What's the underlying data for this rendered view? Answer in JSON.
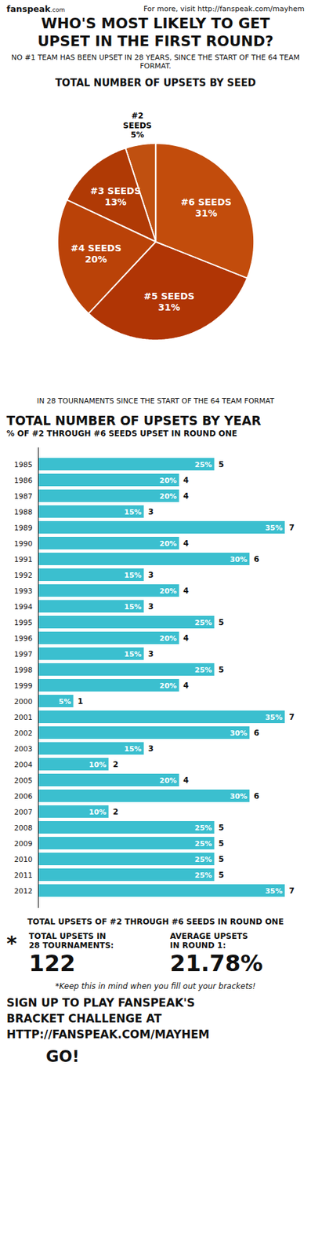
{
  "chart_data": [
    {
      "type": "pie",
      "title": "TOTAL NUMBER OF UPSETS BY SEED",
      "subtitle": "IN 28 TOURNAMENTS SINCE THE START OF THE 64 TEAM FORMAT",
      "annotations": [
        "fanspeak",
        ".com",
        "For more, visit http://fanspeak.com/mayhem",
        "WHO'S MOST LIKELY TO GET",
        "UPSET IN THE FIRST ROUND?",
        "NO #1 TEAM HAS BEEN UPSET IN 28 YEARS, SINCE THE START OF THE 64 TEAM FORMAT."
      ],
      "categories": [
        "#2\nSEEDS",
        "#3 SEEDS",
        "#4 SEEDS",
        "#5 SEEDS",
        "#6 SEEDS"
      ],
      "values": [
        5,
        13,
        20,
        31,
        31
      ],
      "value_labels": [
        "5%",
        "13%",
        "20%",
        "31%",
        "31%"
      ],
      "colors": [
        "#c05010",
        "#b03a05",
        "#ba4208",
        "#b03505",
        "#c24c0c"
      ],
      "data_labels": true,
      "tick_labels": false
    },
    {
      "type": "bar",
      "orientation": "horizontal",
      "title": "TOTAL NUMBER OF UPSETS BY YEAR",
      "subtitle": "% OF #2 THROUGH #6 SEEDS UPSET IN ROUND ONE",
      "categories": [
        "1985",
        "1986",
        "1987",
        "1988",
        "1989",
        "1990",
        "1991",
        "1992",
        "1993",
        "1994",
        "1995",
        "1996",
        "1997",
        "1998",
        "1999",
        "2000",
        "2001",
        "2002",
        "2003",
        "2004",
        "2005",
        "2006",
        "2007",
        "2008",
        "2009",
        "2010",
        "2011",
        "2012"
      ],
      "values": [
        25,
        20,
        20,
        15,
        35,
        20,
        30,
        15,
        20,
        15,
        25,
        20,
        15,
        25,
        20,
        5,
        35,
        30,
        15,
        10,
        20,
        30,
        10,
        25,
        25,
        25,
        25,
        35
      ],
      "value_labels": [
        "25%",
        "20%",
        "20%",
        "15%",
        "35%",
        "20%",
        "30%",
        "15%",
        "20%",
        "15%",
        "25%",
        "20%",
        "15%",
        "25%",
        "20%",
        "5%",
        "35%",
        "30%",
        "15%",
        "10%",
        "20%",
        "30%",
        "10%",
        "25%",
        "25%",
        "25%",
        "25%",
        "35%"
      ],
      "counts": [
        5,
        4,
        4,
        3,
        7,
        4,
        6,
        3,
        4,
        3,
        5,
        4,
        3,
        5,
        4,
        1,
        7,
        6,
        3,
        2,
        4,
        6,
        2,
        5,
        5,
        5,
        5,
        7
      ],
      "color": "#3bbfcf",
      "xlim": [
        0,
        35
      ],
      "data_labels": true,
      "tick_labels": "y",
      "annotations": [
        "TOTAL UPSETS OF #2 THROUGH #6 SEEDS IN ROUND ONE",
        "*",
        "TOTAL UPSETS IN\n28 TOURNAMENTS:",
        "122",
        "AVERAGE UPSETS\nIN ROUND 1:",
        "21.78%",
        "*Keep this in mind when you fill out your brackets!",
        "SIGN UP TO PLAY FANSPEAK'S",
        "BRACKET CHALLENGE AT",
        "HTTP://FANSPEAK.COM/MAYHEM",
        "GO!"
      ]
    }
  ]
}
